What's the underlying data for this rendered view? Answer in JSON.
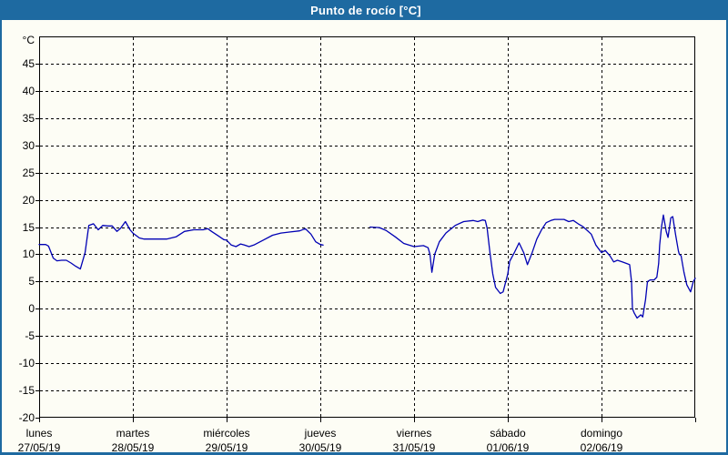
{
  "title_bar": {
    "title": "Punto de rocío [°C]"
  },
  "colors": {
    "titlebar_bg": "#1e6aa1",
    "frame_border": "#1e6aa1",
    "background": "#fdfdf5",
    "grid": "#000000",
    "line": "#0000b4"
  },
  "chart_data": {
    "type": "line",
    "title": "Punto de rocío [°C]",
    "y_axis_unit_label": "°C",
    "ylim": [
      -20,
      50
    ],
    "y_tick_step": 5,
    "y_tick_labels": [
      45,
      40,
      35,
      30,
      25,
      20,
      15,
      10,
      5,
      0,
      -5,
      -10,
      -15,
      -20
    ],
    "grid": "dashed",
    "legend_position": "none",
    "x_axis": {
      "unit": "days",
      "range": [
        0,
        7
      ],
      "day_ticks": [
        {
          "day": "lunes",
          "date": "27/05/19"
        },
        {
          "day": "martes",
          "date": "28/05/19"
        },
        {
          "day": "miércoles",
          "date": "29/05/19"
        },
        {
          "day": "jueves",
          "date": "30/05/19"
        },
        {
          "day": "viernes",
          "date": "31/05/19"
        },
        {
          "day": "sábado",
          "date": "01/06/19"
        },
        {
          "day": "domingo",
          "date": "02/06/19"
        }
      ]
    },
    "series": [
      {
        "name": "Punto de rocío",
        "color": "#0000b4",
        "note": "gap in data between day 3.03 and 3.53 (jueves)",
        "segments": [
          [
            [
              0.0,
              11.8
            ],
            [
              0.07,
              11.8
            ],
            [
              0.1,
              11.5
            ],
            [
              0.15,
              9.3
            ],
            [
              0.19,
              8.8
            ],
            [
              0.24,
              8.9
            ],
            [
              0.29,
              8.9
            ],
            [
              0.34,
              8.4
            ],
            [
              0.39,
              7.8
            ],
            [
              0.44,
              7.3
            ],
            [
              0.49,
              10.3
            ],
            [
              0.53,
              15.3
            ],
            [
              0.58,
              15.6
            ],
            [
              0.63,
              14.5
            ],
            [
              0.68,
              15.3
            ],
            [
              0.73,
              15.2
            ],
            [
              0.78,
              15.2
            ],
            [
              0.83,
              14.2
            ],
            [
              0.87,
              14.8
            ],
            [
              0.92,
              16.0
            ],
            [
              0.97,
              14.5
            ],
            [
              1.0,
              13.9
            ],
            [
              1.07,
              13.0
            ],
            [
              1.12,
              12.8
            ],
            [
              1.21,
              12.8
            ],
            [
              1.31,
              12.8
            ],
            [
              1.36,
              12.8
            ],
            [
              1.46,
              13.2
            ],
            [
              1.55,
              14.2
            ],
            [
              1.65,
              14.5
            ],
            [
              1.75,
              14.5
            ],
            [
              1.8,
              14.7
            ],
            [
              1.84,
              14.2
            ],
            [
              1.91,
              13.4
            ],
            [
              1.97,
              12.7
            ],
            [
              2.0,
              12.6
            ],
            [
              2.05,
              11.7
            ],
            [
              2.1,
              11.4
            ],
            [
              2.15,
              11.9
            ],
            [
              2.19,
              11.7
            ],
            [
              2.24,
              11.4
            ],
            [
              2.29,
              11.7
            ],
            [
              2.39,
              12.6
            ],
            [
              2.49,
              13.5
            ],
            [
              2.58,
              13.9
            ],
            [
              2.68,
              14.1
            ],
            [
              2.78,
              14.3
            ],
            [
              2.84,
              14.7
            ],
            [
              2.9,
              13.7
            ],
            [
              2.95,
              12.3
            ],
            [
              3.0,
              11.8
            ],
            [
              3.03,
              11.7
            ]
          ],
          [
            [
              3.53,
              15.0
            ],
            [
              3.63,
              14.9
            ],
            [
              3.7,
              14.4
            ],
            [
              3.8,
              13.2
            ],
            [
              3.89,
              12.0
            ],
            [
              4.0,
              11.4
            ],
            [
              4.1,
              11.6
            ],
            [
              4.15,
              11.2
            ],
            [
              4.17,
              10.0
            ],
            [
              4.19,
              6.7
            ],
            [
              4.22,
              10.0
            ],
            [
              4.27,
              12.3
            ],
            [
              4.34,
              13.9
            ],
            [
              4.44,
              15.3
            ],
            [
              4.53,
              16.0
            ],
            [
              4.63,
              16.2
            ],
            [
              4.68,
              16.0
            ],
            [
              4.73,
              16.3
            ],
            [
              4.76,
              16.2
            ],
            [
              4.78,
              14.8
            ],
            [
              4.81,
              10.3
            ],
            [
              4.84,
              6.4
            ],
            [
              4.87,
              3.9
            ],
            [
              4.92,
              2.8
            ],
            [
              4.95,
              3.1
            ],
            [
              5.0,
              6.4
            ],
            [
              5.02,
              8.7
            ],
            [
              5.07,
              10.3
            ],
            [
              5.12,
              12.1
            ],
            [
              5.17,
              10.3
            ],
            [
              5.21,
              8.1
            ],
            [
              5.26,
              10.3
            ],
            [
              5.31,
              12.8
            ],
            [
              5.36,
              14.5
            ],
            [
              5.41,
              15.8
            ],
            [
              5.46,
              16.2
            ],
            [
              5.5,
              16.4
            ],
            [
              5.6,
              16.4
            ],
            [
              5.65,
              16.0
            ],
            [
              5.7,
              16.2
            ],
            [
              5.75,
              15.6
            ],
            [
              5.8,
              15.1
            ],
            [
              5.84,
              14.5
            ],
            [
              5.89,
              13.7
            ],
            [
              5.94,
              11.7
            ],
            [
              6.0,
              10.3
            ],
            [
              6.04,
              10.7
            ],
            [
              6.09,
              9.7
            ],
            [
              6.13,
              8.6
            ],
            [
              6.17,
              8.9
            ],
            [
              6.22,
              8.6
            ],
            [
              6.27,
              8.3
            ],
            [
              6.3,
              8.1
            ],
            [
              6.32,
              5.0
            ],
            [
              6.33,
              0.0
            ],
            [
              6.35,
              -0.8
            ],
            [
              6.38,
              -1.7
            ],
            [
              6.42,
              -1.1
            ],
            [
              6.44,
              -1.5
            ],
            [
              6.47,
              1.7
            ],
            [
              6.49,
              5.0
            ],
            [
              6.52,
              5.3
            ],
            [
              6.56,
              5.3
            ],
            [
              6.59,
              5.8
            ],
            [
              6.61,
              8.3
            ],
            [
              6.62,
              11.7
            ],
            [
              6.64,
              15.0
            ],
            [
              6.66,
              17.2
            ],
            [
              6.69,
              14.2
            ],
            [
              6.71,
              13.1
            ],
            [
              6.74,
              16.7
            ],
            [
              6.76,
              16.9
            ],
            [
              6.79,
              13.6
            ],
            [
              6.82,
              10.6
            ],
            [
              6.83,
              10.0
            ],
            [
              6.85,
              9.7
            ],
            [
              6.86,
              8.6
            ],
            [
              6.88,
              6.7
            ],
            [
              6.91,
              4.4
            ],
            [
              6.95,
              3.1
            ],
            [
              6.98,
              5.0
            ],
            [
              7.0,
              5.6
            ]
          ]
        ]
      }
    ]
  }
}
